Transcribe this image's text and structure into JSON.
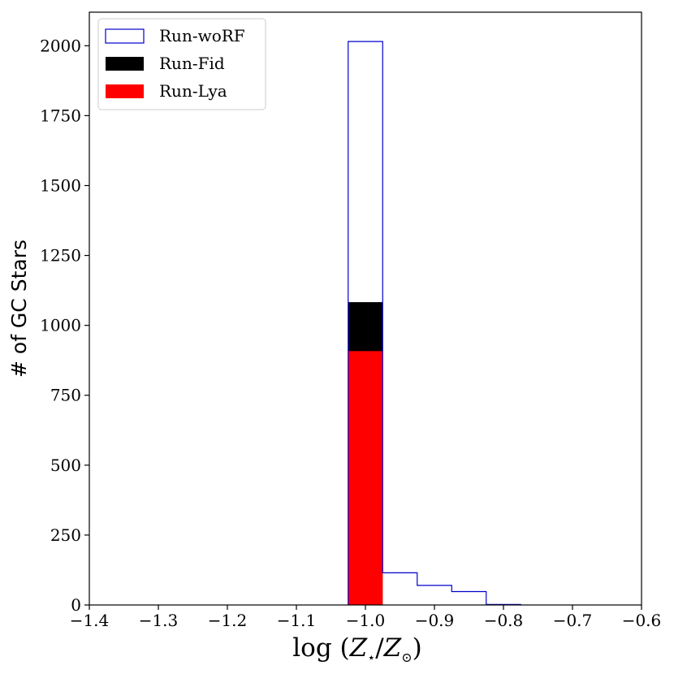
{
  "chart_data": {
    "type": "bar",
    "xlabel_parts": {
      "prefix": "log (",
      "z1": "Z",
      "sub1": "⋆",
      "slash": "/",
      "z2": "Z",
      "sub2": "⊙",
      "suffix": ")"
    },
    "ylabel": "# of GC Stars",
    "xlim": [
      -1.4,
      -0.6
    ],
    "ylim": [
      0,
      2120
    ],
    "xticks": [
      "−1.4",
      "−1.3",
      "−1.2",
      "−1.1",
      "−1.0",
      "−0.9",
      "−0.8",
      "−0.7",
      "−0.6"
    ],
    "xtick_values": [
      -1.4,
      -1.3,
      -1.2,
      -1.1,
      -1.0,
      -0.9,
      -0.8,
      -0.7,
      -0.6
    ],
    "yticks": [
      "0",
      "250",
      "500",
      "750",
      "1000",
      "1250",
      "1500",
      "1750",
      "2000"
    ],
    "ytick_values": [
      0,
      250,
      500,
      750,
      1000,
      1250,
      1500,
      1750,
      2000
    ],
    "grid": false,
    "legend_position": "top-left",
    "legend": [
      "Run-woRF",
      "Run-Fid",
      "Run-Lya"
    ],
    "series": [
      {
        "name": "Run-woRF",
        "style": "step",
        "color": "#0000cc",
        "bins": [
          {
            "x0": -1.025,
            "x1": -0.975,
            "value": 2015
          },
          {
            "x0": -0.975,
            "x1": -0.925,
            "value": 115
          },
          {
            "x0": -0.925,
            "x1": -0.875,
            "value": 70
          },
          {
            "x0": -0.875,
            "x1": -0.825,
            "value": 48
          },
          {
            "x0": -0.825,
            "x1": -0.775,
            "value": 2
          }
        ]
      },
      {
        "name": "Run-Fid",
        "style": "filled",
        "color": "#000000",
        "bins": [
          {
            "x0": -1.025,
            "x1": -0.975,
            "value": 1083
          }
        ]
      },
      {
        "name": "Run-Lya",
        "style": "filled",
        "color": "#ff0000",
        "bins": [
          {
            "x0": -1.025,
            "x1": -0.975,
            "value": 908
          }
        ]
      }
    ]
  }
}
